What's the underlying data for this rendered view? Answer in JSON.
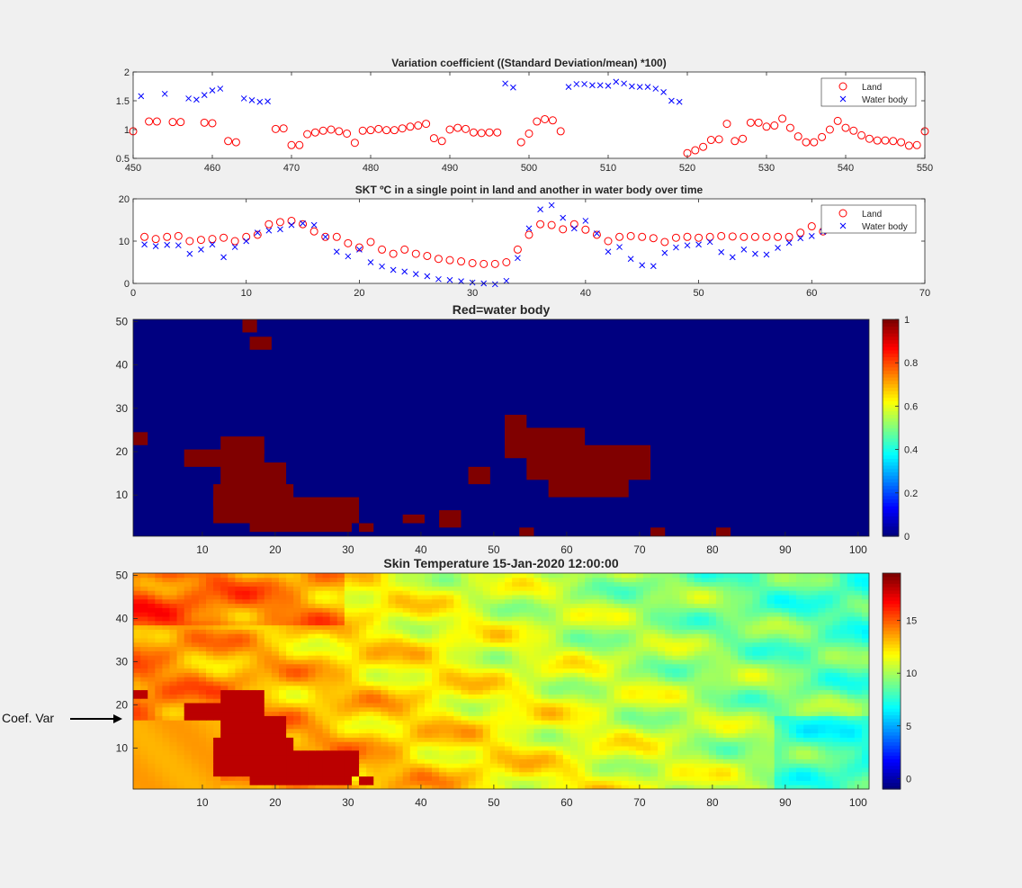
{
  "chart_data": [
    {
      "type": "scatter",
      "title": "Variation coefficient ((Standard Deviation/mean) *100)",
      "xlim": [
        450,
        550
      ],
      "ylim": [
        0.5,
        2
      ],
      "xticks": [
        "450",
        "460",
        "470",
        "480",
        "490",
        "500",
        "510",
        "520",
        "530",
        "540",
        "550"
      ],
      "yticks": [
        "0.5",
        "1",
        "1.5",
        "2"
      ],
      "legend": "top-right",
      "series": [
        {
          "name": "Land",
          "marker": "circle",
          "color": "#ff0000",
          "x": [
            450,
            452,
            453,
            455,
            456,
            459,
            460,
            462,
            463,
            468,
            469,
            470,
            471,
            472,
            473,
            474,
            475,
            476,
            477,
            478,
            479,
            480,
            481,
            482,
            483,
            484,
            485,
            486,
            487,
            488,
            489,
            490,
            491,
            492,
            493,
            494,
            495,
            496,
            499,
            500,
            501,
            502,
            503,
            504,
            520,
            521,
            522,
            523,
            524,
            525,
            526,
            527,
            528,
            529,
            530,
            531,
            532,
            533,
            534,
            535,
            536,
            537,
            538,
            539,
            540,
            541,
            542,
            543,
            544,
            545,
            546,
            547,
            548,
            549,
            550
          ],
          "y": [
            0.97,
            1.14,
            1.14,
            1.13,
            1.13,
            1.12,
            1.11,
            0.8,
            0.78,
            1.01,
            1.02,
            0.73,
            0.73,
            0.92,
            0.95,
            0.98,
            1.0,
            0.97,
            0.93,
            0.77,
            0.98,
            0.99,
            1.01,
            0.99,
            0.99,
            1.02,
            1.05,
            1.07,
            1.1,
            0.85,
            0.8,
            1.0,
            1.03,
            1.01,
            0.95,
            0.94,
            0.95,
            0.95,
            0.78,
            0.93,
            1.14,
            1.18,
            1.16,
            0.97,
            0.59,
            0.64,
            0.7,
            0.82,
            0.83,
            1.1,
            0.8,
            0.84,
            1.12,
            1.12,
            1.05,
            1.07,
            1.19,
            1.03,
            0.88,
            0.78,
            0.78,
            0.87,
            1.0,
            1.15,
            1.03,
            0.98,
            0.9,
            0.84,
            0.81,
            0.81,
            0.8,
            0.78,
            0.72,
            0.73,
            0.97
          ]
        },
        {
          "name": "Water body",
          "marker": "x",
          "color": "#0000ff",
          "x": [
            451,
            454,
            457,
            458,
            459,
            460,
            461,
            464,
            465,
            466,
            467,
            497,
            498,
            505,
            506,
            507,
            508,
            509,
            510,
            511,
            512,
            513,
            514,
            515,
            516,
            517,
            518,
            519
          ],
          "y": [
            1.58,
            1.62,
            1.54,
            1.52,
            1.6,
            1.68,
            1.71,
            1.54,
            1.51,
            1.48,
            1.49,
            1.8,
            1.73,
            1.74,
            1.79,
            1.79,
            1.77,
            1.77,
            1.76,
            1.83,
            1.8,
            1.75,
            1.74,
            1.74,
            1.71,
            1.65,
            1.5,
            1.48
          ]
        }
      ]
    },
    {
      "type": "scatter",
      "title": "SKT ºC in a single point in land and another in water body over time",
      "xlim": [
        0,
        70
      ],
      "ylim": [
        0,
        20
      ],
      "xticks": [
        "0",
        "10",
        "20",
        "30",
        "40",
        "50",
        "60",
        "70"
      ],
      "yticks": [
        "0",
        "10",
        "20"
      ],
      "legend": "top-right",
      "series": [
        {
          "name": "Land",
          "marker": "circle",
          "color": "#ff0000",
          "x": [
            1,
            2,
            3,
            4,
            5,
            6,
            7,
            8,
            9,
            10,
            11,
            12,
            13,
            14,
            15,
            16,
            17,
            18,
            19,
            20,
            21,
            22,
            23,
            24,
            25,
            26,
            27,
            28,
            29,
            30,
            31,
            32,
            33,
            34,
            35,
            36,
            37,
            38,
            39,
            40,
            41,
            42,
            43,
            44,
            45,
            46,
            47,
            48,
            49,
            50,
            51,
            52,
            53,
            54,
            55,
            56,
            57,
            58,
            59,
            60,
            61
          ],
          "y": [
            11,
            10.5,
            11,
            11.2,
            10,
            10.3,
            10.5,
            10.8,
            10,
            11,
            11.5,
            14,
            14.5,
            14.8,
            14,
            12.3,
            11,
            11,
            9.5,
            8.5,
            9.8,
            8,
            7,
            8,
            7,
            6.5,
            5.8,
            5.5,
            5.2,
            4.8,
            4.6,
            4.6,
            5,
            8,
            11.5,
            14,
            13.8,
            12.8,
            14,
            12.7,
            11.5,
            10,
            11,
            11.2,
            11,
            10.7,
            9.8,
            10.8,
            11,
            10.8,
            11,
            11.2,
            11.1,
            11,
            11,
            11,
            11,
            11,
            12,
            13.5,
            12.3
          ]
        },
        {
          "name": "Water body",
          "marker": "x",
          "color": "#0000ff",
          "x": [
            1,
            2,
            3,
            4,
            5,
            6,
            7,
            8,
            9,
            10,
            11,
            12,
            13,
            14,
            15,
            16,
            17,
            18,
            19,
            20,
            21,
            22,
            23,
            24,
            25,
            26,
            27,
            28,
            29,
            30,
            31,
            32,
            33,
            34,
            35,
            36,
            37,
            38,
            39,
            40,
            41,
            42,
            43,
            44,
            45,
            46,
            47,
            48,
            49,
            50,
            51,
            52,
            53,
            54,
            55,
            56,
            57,
            58,
            59,
            60,
            61
          ],
          "y": [
            9.2,
            8.8,
            9.1,
            9,
            7,
            8,
            9.2,
            6.2,
            8.6,
            10,
            12,
            12.5,
            12.8,
            13.8,
            14.2,
            13.8,
            11,
            7.5,
            6.4,
            8,
            5,
            4,
            3.2,
            2.8,
            2.2,
            1.7,
            1,
            0.8,
            0.5,
            0.2,
            0,
            -0.2,
            0.6,
            6,
            13,
            17.5,
            18.5,
            15.5,
            13,
            14.8,
            11.8,
            7.5,
            8.6,
            5.8,
            4.3,
            4.1,
            7.2,
            8.5,
            9,
            9.2,
            9.8,
            7.4,
            6.2,
            8,
            7,
            6.8,
            8.4,
            9.6,
            10.7,
            11.2,
            12.2
          ]
        }
      ]
    },
    {
      "type": "heatmap",
      "title": "Red=water body",
      "xlim": [
        1,
        101
      ],
      "ylim": [
        1,
        50
      ],
      "xticks": [
        "10",
        "20",
        "30",
        "40",
        "50",
        "60",
        "70",
        "80",
        "90",
        "100"
      ],
      "yticks": [
        "10",
        "20",
        "30",
        "40",
        "50"
      ],
      "colorbar": {
        "min": 0,
        "max": 1,
        "ticks": [
          "0",
          "0.2",
          "0.4",
          "0.6",
          "0.8",
          "1"
        ]
      },
      "water_regions": [
        {
          "x0": 13,
          "x1": 18,
          "y0": 20,
          "y1": 23
        },
        {
          "x0": 8,
          "x1": 18,
          "y0": 17,
          "y1": 20
        },
        {
          "x0": 13,
          "x1": 21,
          "y0": 12,
          "y1": 17
        },
        {
          "x0": 12,
          "x1": 22,
          "y0": 8,
          "y1": 12
        },
        {
          "x0": 12,
          "x1": 31,
          "y0": 4,
          "y1": 9
        },
        {
          "x0": 17,
          "x1": 30,
          "y0": 2,
          "y1": 5
        },
        {
          "x0": 52,
          "x1": 54,
          "y0": 22,
          "y1": 28
        },
        {
          "x0": 52,
          "x1": 62,
          "y0": 19,
          "y1": 25
        },
        {
          "x0": 55,
          "x1": 71,
          "y0": 14,
          "y1": 21
        },
        {
          "x0": 58,
          "x1": 68,
          "y0": 10,
          "y1": 15
        },
        {
          "x0": 17,
          "x1": 19,
          "y0": 44,
          "y1": 46
        },
        {
          "x0": 16,
          "x1": 17,
          "y0": 48,
          "y1": 50
        },
        {
          "x0": 1,
          "x1": 2,
          "y0": 22,
          "y1": 24
        },
        {
          "x0": 43,
          "x1": 45,
          "y0": 3,
          "y1": 6
        },
        {
          "x0": 47,
          "x1": 49,
          "y0": 13,
          "y1": 16
        },
        {
          "x0": 32,
          "x1": 33,
          "y0": 2,
          "y1": 3
        },
        {
          "x0": 38,
          "x1": 40,
          "y0": 4,
          "y1": 5
        },
        {
          "x0": 72,
          "x1": 73,
          "y0": 1,
          "y1": 2
        },
        {
          "x0": 81,
          "x1": 82,
          "y0": 1,
          "y1": 2
        },
        {
          "x0": 54,
          "x1": 55,
          "y0": 1,
          "y1": 2
        }
      ]
    },
    {
      "type": "heatmap",
      "title": "Skin Temperature  15-Jan-2020 12:00:00",
      "xlim": [
        1,
        101
      ],
      "ylim": [
        1,
        50
      ],
      "xticks": [
        "10",
        "20",
        "30",
        "40",
        "50",
        "60",
        "70",
        "80",
        "90",
        "100"
      ],
      "yticks": [
        "10",
        "20",
        "30",
        "40",
        "50"
      ],
      "colorbar": {
        "min": -1,
        "max": 19.5,
        "ticks": [
          "0",
          "5",
          "10",
          "15"
        ]
      }
    }
  ],
  "annotation": {
    "text": "Coef. Var"
  }
}
